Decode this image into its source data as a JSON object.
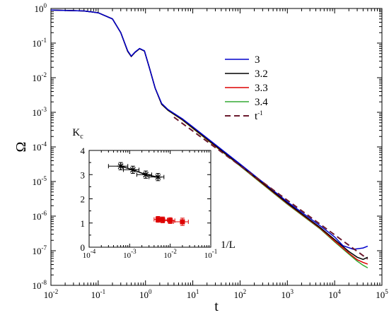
{
  "chart_data": [
    {
      "type": "line",
      "title": "",
      "xlabel": "t",
      "ylabel": "Ω",
      "xscale": "log",
      "yscale": "log",
      "xlim": [
        0.01,
        100000
      ],
      "ylim": [
        1e-08,
        1
      ],
      "x_ticks": [
        {
          "value": 0.01,
          "base": "10",
          "exp": "-2"
        },
        {
          "value": 0.1,
          "base": "10",
          "exp": "-1"
        },
        {
          "value": 1,
          "base": "10",
          "exp": "0"
        },
        {
          "value": 10,
          "base": "10",
          "exp": "1"
        },
        {
          "value": 100,
          "base": "10",
          "exp": "2"
        },
        {
          "value": 1000,
          "base": "10",
          "exp": "3"
        },
        {
          "value": 10000,
          "base": "10",
          "exp": "4"
        },
        {
          "value": 100000,
          "base": "10",
          "exp": "5"
        }
      ],
      "y_ticks": [
        {
          "value": 1,
          "base": "10",
          "exp": "0"
        },
        {
          "value": 0.1,
          "base": "10",
          "exp": "-1"
        },
        {
          "value": 0.01,
          "base": "10",
          "exp": "-2"
        },
        {
          "value": 0.001,
          "base": "10",
          "exp": "-3"
        },
        {
          "value": 0.0001,
          "base": "10",
          "exp": "-4"
        },
        {
          "value": 1e-05,
          "base": "10",
          "exp": "-5"
        },
        {
          "value": 1e-06,
          "base": "10",
          "exp": "-6"
        },
        {
          "value": 1e-07,
          "base": "10",
          "exp": "-7"
        },
        {
          "value": 1e-08,
          "base": "10",
          "exp": "-8"
        }
      ],
      "legend_position": "upper-right",
      "series": [
        {
          "name": "3",
          "color": "#0000cc",
          "dash": false,
          "x": [
            0.01,
            0.05,
            0.1,
            0.2,
            0.3,
            0.42,
            0.5,
            0.6,
            0.75,
            0.95,
            1.2,
            1.6,
            2.2,
            3,
            6,
            10,
            100,
            1000,
            5000,
            10000,
            15000,
            25000,
            40000,
            50000
          ],
          "y": [
            0.9,
            0.85,
            0.75,
            0.5,
            0.2,
            0.06,
            0.042,
            0.055,
            0.07,
            0.06,
            0.02,
            0.005,
            0.0018,
            0.0012,
            0.00065,
            0.00038,
            3.2e-05,
            2.6e-06,
            5.2e-07,
            2.5e-07,
            1.4e-07,
            1.1e-07,
            1.2e-07,
            1.35e-07
          ]
        },
        {
          "name": "3.2",
          "color": "#000000",
          "dash": false,
          "x": [
            0.01,
            0.05,
            0.1,
            0.2,
            0.3,
            0.42,
            0.5,
            0.6,
            0.75,
            0.95,
            1.2,
            1.6,
            2.2,
            3,
            6,
            10,
            100,
            1000,
            5000,
            10000,
            20000,
            30000,
            40000,
            50000
          ],
          "y": [
            0.9,
            0.85,
            0.75,
            0.5,
            0.2,
            0.058,
            0.041,
            0.054,
            0.069,
            0.059,
            0.02,
            0.005,
            0.0017,
            0.00115,
            0.00062,
            0.00036,
            3e-05,
            2.4e-06,
            4.6e-07,
            2.1e-07,
            9.5e-08,
            6.5e-08,
            5.6e-08,
            6.5e-08
          ]
        },
        {
          "name": "3.3",
          "color": "#dd0000",
          "dash": false,
          "x": [
            0.01,
            0.05,
            0.1,
            0.2,
            0.3,
            0.42,
            0.5,
            0.6,
            0.75,
            0.95,
            1.2,
            1.6,
            2.2,
            3,
            6,
            10,
            100,
            1000,
            5000,
            10000,
            20000,
            30000,
            40000,
            50000
          ],
          "y": [
            0.9,
            0.85,
            0.75,
            0.5,
            0.2,
            0.058,
            0.041,
            0.054,
            0.069,
            0.059,
            0.02,
            0.005,
            0.0017,
            0.00114,
            0.00061,
            0.00035,
            2.9e-05,
            2.3e-06,
            4.4e-07,
            1.9e-07,
            8.5e-08,
            5.5e-08,
            4.6e-08,
            4.1e-08
          ]
        },
        {
          "name": "3.4",
          "color": "#33aa33",
          "dash": false,
          "x": [
            0.01,
            0.05,
            0.1,
            0.2,
            0.3,
            0.42,
            0.5,
            0.6,
            0.75,
            0.95,
            1.2,
            1.6,
            2.2,
            3,
            6,
            10,
            100,
            1000,
            5000,
            10000,
            20000,
            30000,
            40000,
            50000
          ],
          "y": [
            0.9,
            0.85,
            0.75,
            0.5,
            0.2,
            0.058,
            0.041,
            0.054,
            0.069,
            0.059,
            0.02,
            0.005,
            0.0017,
            0.00113,
            0.0006,
            0.00034,
            2.8e-05,
            2.2e-06,
            4.2e-07,
            1.8e-07,
            8e-08,
            5e-08,
            3.8e-08,
            3.2e-08
          ]
        },
        {
          "name": "t^-1",
          "label_base": "t",
          "label_exp": "-1",
          "color": "#6b1a2e",
          "dash": true,
          "x": [
            4,
            50000
          ],
          "y": [
            0.00072,
            5.76e-08
          ]
        }
      ]
    },
    {
      "type": "scatter",
      "title": "",
      "xlabel": "1/L",
      "ylabel_base": "K",
      "ylabel_sub": "c",
      "xscale": "log",
      "xlim": [
        0.0001,
        0.1
      ],
      "ylim": [
        0,
        4
      ],
      "x_ticks": [
        {
          "value": 0.0001,
          "base": "10",
          "exp": "-4"
        },
        {
          "value": 0.001,
          "base": "10",
          "exp": "-3"
        },
        {
          "value": 0.01,
          "base": "10",
          "exp": "-2"
        },
        {
          "value": 0.1,
          "base": "10",
          "exp": "-1"
        }
      ],
      "y_ticks": [
        0,
        1,
        2,
        3,
        4
      ],
      "series": [
        {
          "marker": "star",
          "color": "#000000",
          "line": true,
          "x": [
            0.0006,
            0.0012,
            0.0025,
            0.005
          ],
          "y": [
            3.35,
            3.2,
            3.0,
            2.9
          ],
          "xerr": [
            0.0003,
            0.0005,
            0.001,
            0.002
          ],
          "yerr": [
            0.15,
            0.15,
            0.15,
            0.15
          ]
        },
        {
          "marker": "square",
          "color": "#dd0000",
          "line": false,
          "x": [
            0.005,
            0.0065,
            0.01,
            0.02
          ],
          "y": [
            1.15,
            1.13,
            1.1,
            1.05
          ],
          "xerr": [
            0.001,
            0.002,
            0.003,
            0.008
          ],
          "yerr": [
            0.12,
            0.12,
            0.12,
            0.15
          ]
        }
      ]
    }
  ]
}
